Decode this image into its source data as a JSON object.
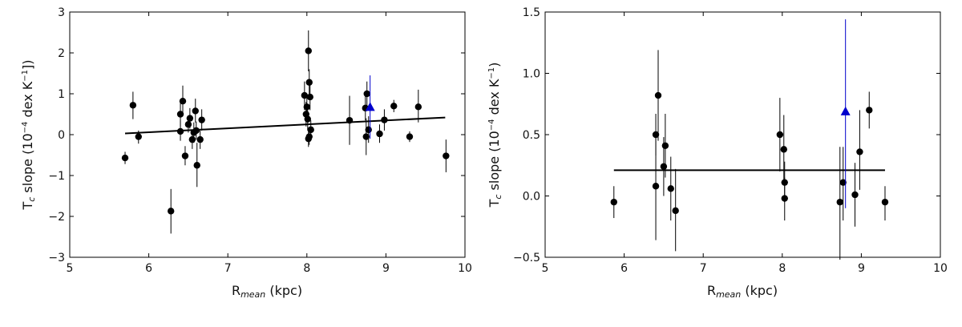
{
  "chart_data": [
    {
      "type": "scatter",
      "xlabel": "R_mean (kpc)",
      "xlabel_main": "R",
      "xlabel_sub": "mean",
      "xlabel_tail": " (kpc)",
      "ylabel": "T_c slope (10^-4 dex K^-1])",
      "ylabel_parts": {
        "a": "T",
        "b": "c",
        "c": " slope (10",
        "d": "−4",
        "e": " dex K",
        "f": "−1",
        "g": "])"
      },
      "xlim": [
        5,
        10
      ],
      "ylim": [
        -3,
        3
      ],
      "xticks": [
        "5",
        "6",
        "7",
        "8",
        "9",
        "10"
      ],
      "yticks": [
        "−3",
        "−2",
        "−1",
        "0",
        "1",
        "2",
        "3"
      ],
      "fit_line": {
        "x": [
          5.7,
          9.75
        ],
        "y": [
          0.03,
          0.42
        ]
      },
      "points": [
        {
          "x": 5.7,
          "y": -0.57,
          "lo": -0.72,
          "hi": -0.42
        },
        {
          "x": 5.8,
          "y": 0.72,
          "lo": 0.38,
          "hi": 1.05
        },
        {
          "x": 5.87,
          "y": -0.05,
          "lo": -0.22,
          "hi": 0.1
        },
        {
          "x": 6.28,
          "y": -1.87,
          "lo": -2.42,
          "hi": -1.33
        },
        {
          "x": 6.4,
          "y": 0.5,
          "lo": 0.2,
          "hi": 0.8
        },
        {
          "x": 6.4,
          "y": 0.08,
          "lo": -0.15,
          "hi": 0.35
        },
        {
          "x": 6.43,
          "y": 0.82,
          "lo": 0.45,
          "hi": 1.2
        },
        {
          "x": 6.46,
          "y": -0.52,
          "lo": -0.75,
          "hi": -0.28
        },
        {
          "x": 6.5,
          "y": 0.25,
          "lo": 0.05,
          "hi": 0.45
        },
        {
          "x": 6.52,
          "y": 0.4,
          "lo": 0.15,
          "hi": 0.65
        },
        {
          "x": 6.55,
          "y": -0.12,
          "lo": -0.35,
          "hi": 0.1
        },
        {
          "x": 6.57,
          "y": 0.05,
          "lo": -0.2,
          "hi": 0.3
        },
        {
          "x": 6.59,
          "y": 0.58,
          "lo": 0.3,
          "hi": 0.88
        },
        {
          "x": 6.6,
          "y": 0.1,
          "lo": -0.12,
          "hi": 0.32
        },
        {
          "x": 6.61,
          "y": -0.75,
          "lo": -1.28,
          "hi": -0.2
        },
        {
          "x": 6.65,
          "y": -0.12,
          "lo": -0.35,
          "hi": 0.1
        },
        {
          "x": 6.67,
          "y": 0.36,
          "lo": 0.1,
          "hi": 0.62
        },
        {
          "x": 7.97,
          "y": 0.96,
          "lo": 0.6,
          "hi": 1.3
        },
        {
          "x": 7.99,
          "y": 0.5,
          "lo": 0.2,
          "hi": 0.8
        },
        {
          "x": 8.0,
          "y": 0.68,
          "lo": 0.4,
          "hi": 0.95
        },
        {
          "x": 8.01,
          "y": 0.38,
          "lo": 0.1,
          "hi": 0.65
        },
        {
          "x": 8.02,
          "y": 2.05,
          "lo": 1.55,
          "hi": 2.55
        },
        {
          "x": 8.02,
          "y": -0.1,
          "lo": -0.3,
          "hi": 0.1
        },
        {
          "x": 8.03,
          "y": 1.28,
          "lo": 0.95,
          "hi": 1.6
        },
        {
          "x": 8.03,
          "y": -0.05,
          "lo": -0.25,
          "hi": 0.15
        },
        {
          "x": 8.04,
          "y": 0.92,
          "lo": 0.6,
          "hi": 1.25
        },
        {
          "x": 8.05,
          "y": 0.12,
          "lo": -0.1,
          "hi": 0.35
        },
        {
          "x": 8.54,
          "y": 0.35,
          "lo": -0.25,
          "hi": 0.95
        },
        {
          "x": 8.74,
          "y": 0.65,
          "lo": 0.35,
          "hi": 0.95
        },
        {
          "x": 8.75,
          "y": -0.05,
          "lo": -0.5,
          "hi": 0.4
        },
        {
          "x": 8.76,
          "y": 1.0,
          "lo": 0.65,
          "hi": 1.3
        },
        {
          "x": 8.78,
          "y": 0.12,
          "lo": -0.2,
          "hi": 0.45
        },
        {
          "x": 8.92,
          "y": 0.02,
          "lo": -0.2,
          "hi": 0.25
        },
        {
          "x": 8.98,
          "y": 0.36,
          "lo": 0.1,
          "hi": 0.62
        },
        {
          "x": 9.1,
          "y": 0.7,
          "lo": 0.55,
          "hi": 0.85
        },
        {
          "x": 9.3,
          "y": -0.05,
          "lo": -0.18,
          "hi": 0.08
        },
        {
          "x": 9.41,
          "y": 0.68,
          "lo": 0.3,
          "hi": 1.1
        },
        {
          "x": 9.76,
          "y": -0.52,
          "lo": -0.92,
          "hi": -0.12
        }
      ],
      "highlight": {
        "x": 8.8,
        "y": 0.68,
        "lo": -0.1,
        "hi": 1.45,
        "marker": "triangle",
        "color": "#0000cc"
      }
    },
    {
      "type": "scatter",
      "xlabel": "R_mean (kpc)",
      "xlabel_main": "R",
      "xlabel_sub": "mean",
      "xlabel_tail": " (kpc)",
      "ylabel": "T_c slope (10^-4 dex K^-1)",
      "ylabel_parts": {
        "a": "T",
        "b": "c",
        "c": " slope (10",
        "d": "−4",
        "e": " dex K",
        "f": "−1",
        "g": ")"
      },
      "xlim": [
        5,
        10
      ],
      "ylim": [
        -0.5,
        1.5
      ],
      "xticks": [
        "5",
        "6",
        "7",
        "8",
        "9",
        "10"
      ],
      "yticks": [
        "−0.5",
        "0.0",
        "0.5",
        "1.0",
        "1.5"
      ],
      "fit_line": {
        "x": [
          5.87,
          9.3
        ],
        "y": [
          0.21,
          0.21
        ]
      },
      "points": [
        {
          "x": 5.87,
          "y": -0.05,
          "lo": -0.18,
          "hi": 0.08
        },
        {
          "x": 6.4,
          "y": 0.5,
          "lo": 0.33,
          "hi": 0.67
        },
        {
          "x": 6.4,
          "y": 0.08,
          "lo": -0.36,
          "hi": 0.52
        },
        {
          "x": 6.43,
          "y": 0.82,
          "lo": 0.45,
          "hi": 1.19
        },
        {
          "x": 6.5,
          "y": 0.24,
          "lo": 0.0,
          "hi": 0.48
        },
        {
          "x": 6.52,
          "y": 0.41,
          "lo": 0.15,
          "hi": 0.67
        },
        {
          "x": 6.59,
          "y": 0.06,
          "lo": -0.2,
          "hi": 0.32
        },
        {
          "x": 6.65,
          "y": -0.12,
          "lo": -0.45,
          "hi": 0.22
        },
        {
          "x": 7.97,
          "y": 0.5,
          "lo": 0.2,
          "hi": 0.8
        },
        {
          "x": 8.02,
          "y": 0.38,
          "lo": 0.1,
          "hi": 0.66
        },
        {
          "x": 8.03,
          "y": 0.11,
          "lo": -0.05,
          "hi": 0.28
        },
        {
          "x": 8.03,
          "y": -0.02,
          "lo": -0.2,
          "hi": 0.15
        },
        {
          "x": 8.73,
          "y": -0.05,
          "lo": -0.52,
          "hi": 0.4
        },
        {
          "x": 8.77,
          "y": 0.11,
          "lo": -0.2,
          "hi": 0.4
        },
        {
          "x": 8.92,
          "y": 0.01,
          "lo": -0.25,
          "hi": 0.27
        },
        {
          "x": 8.98,
          "y": 0.36,
          "lo": 0.05,
          "hi": 0.7
        },
        {
          "x": 9.1,
          "y": 0.7,
          "lo": 0.55,
          "hi": 0.85
        },
        {
          "x": 9.3,
          "y": -0.05,
          "lo": -0.2,
          "hi": 0.08
        }
      ],
      "highlight": {
        "x": 8.8,
        "y": 0.69,
        "lo": -0.1,
        "hi": 1.44,
        "marker": "triangle",
        "color": "#0000cc"
      }
    }
  ]
}
